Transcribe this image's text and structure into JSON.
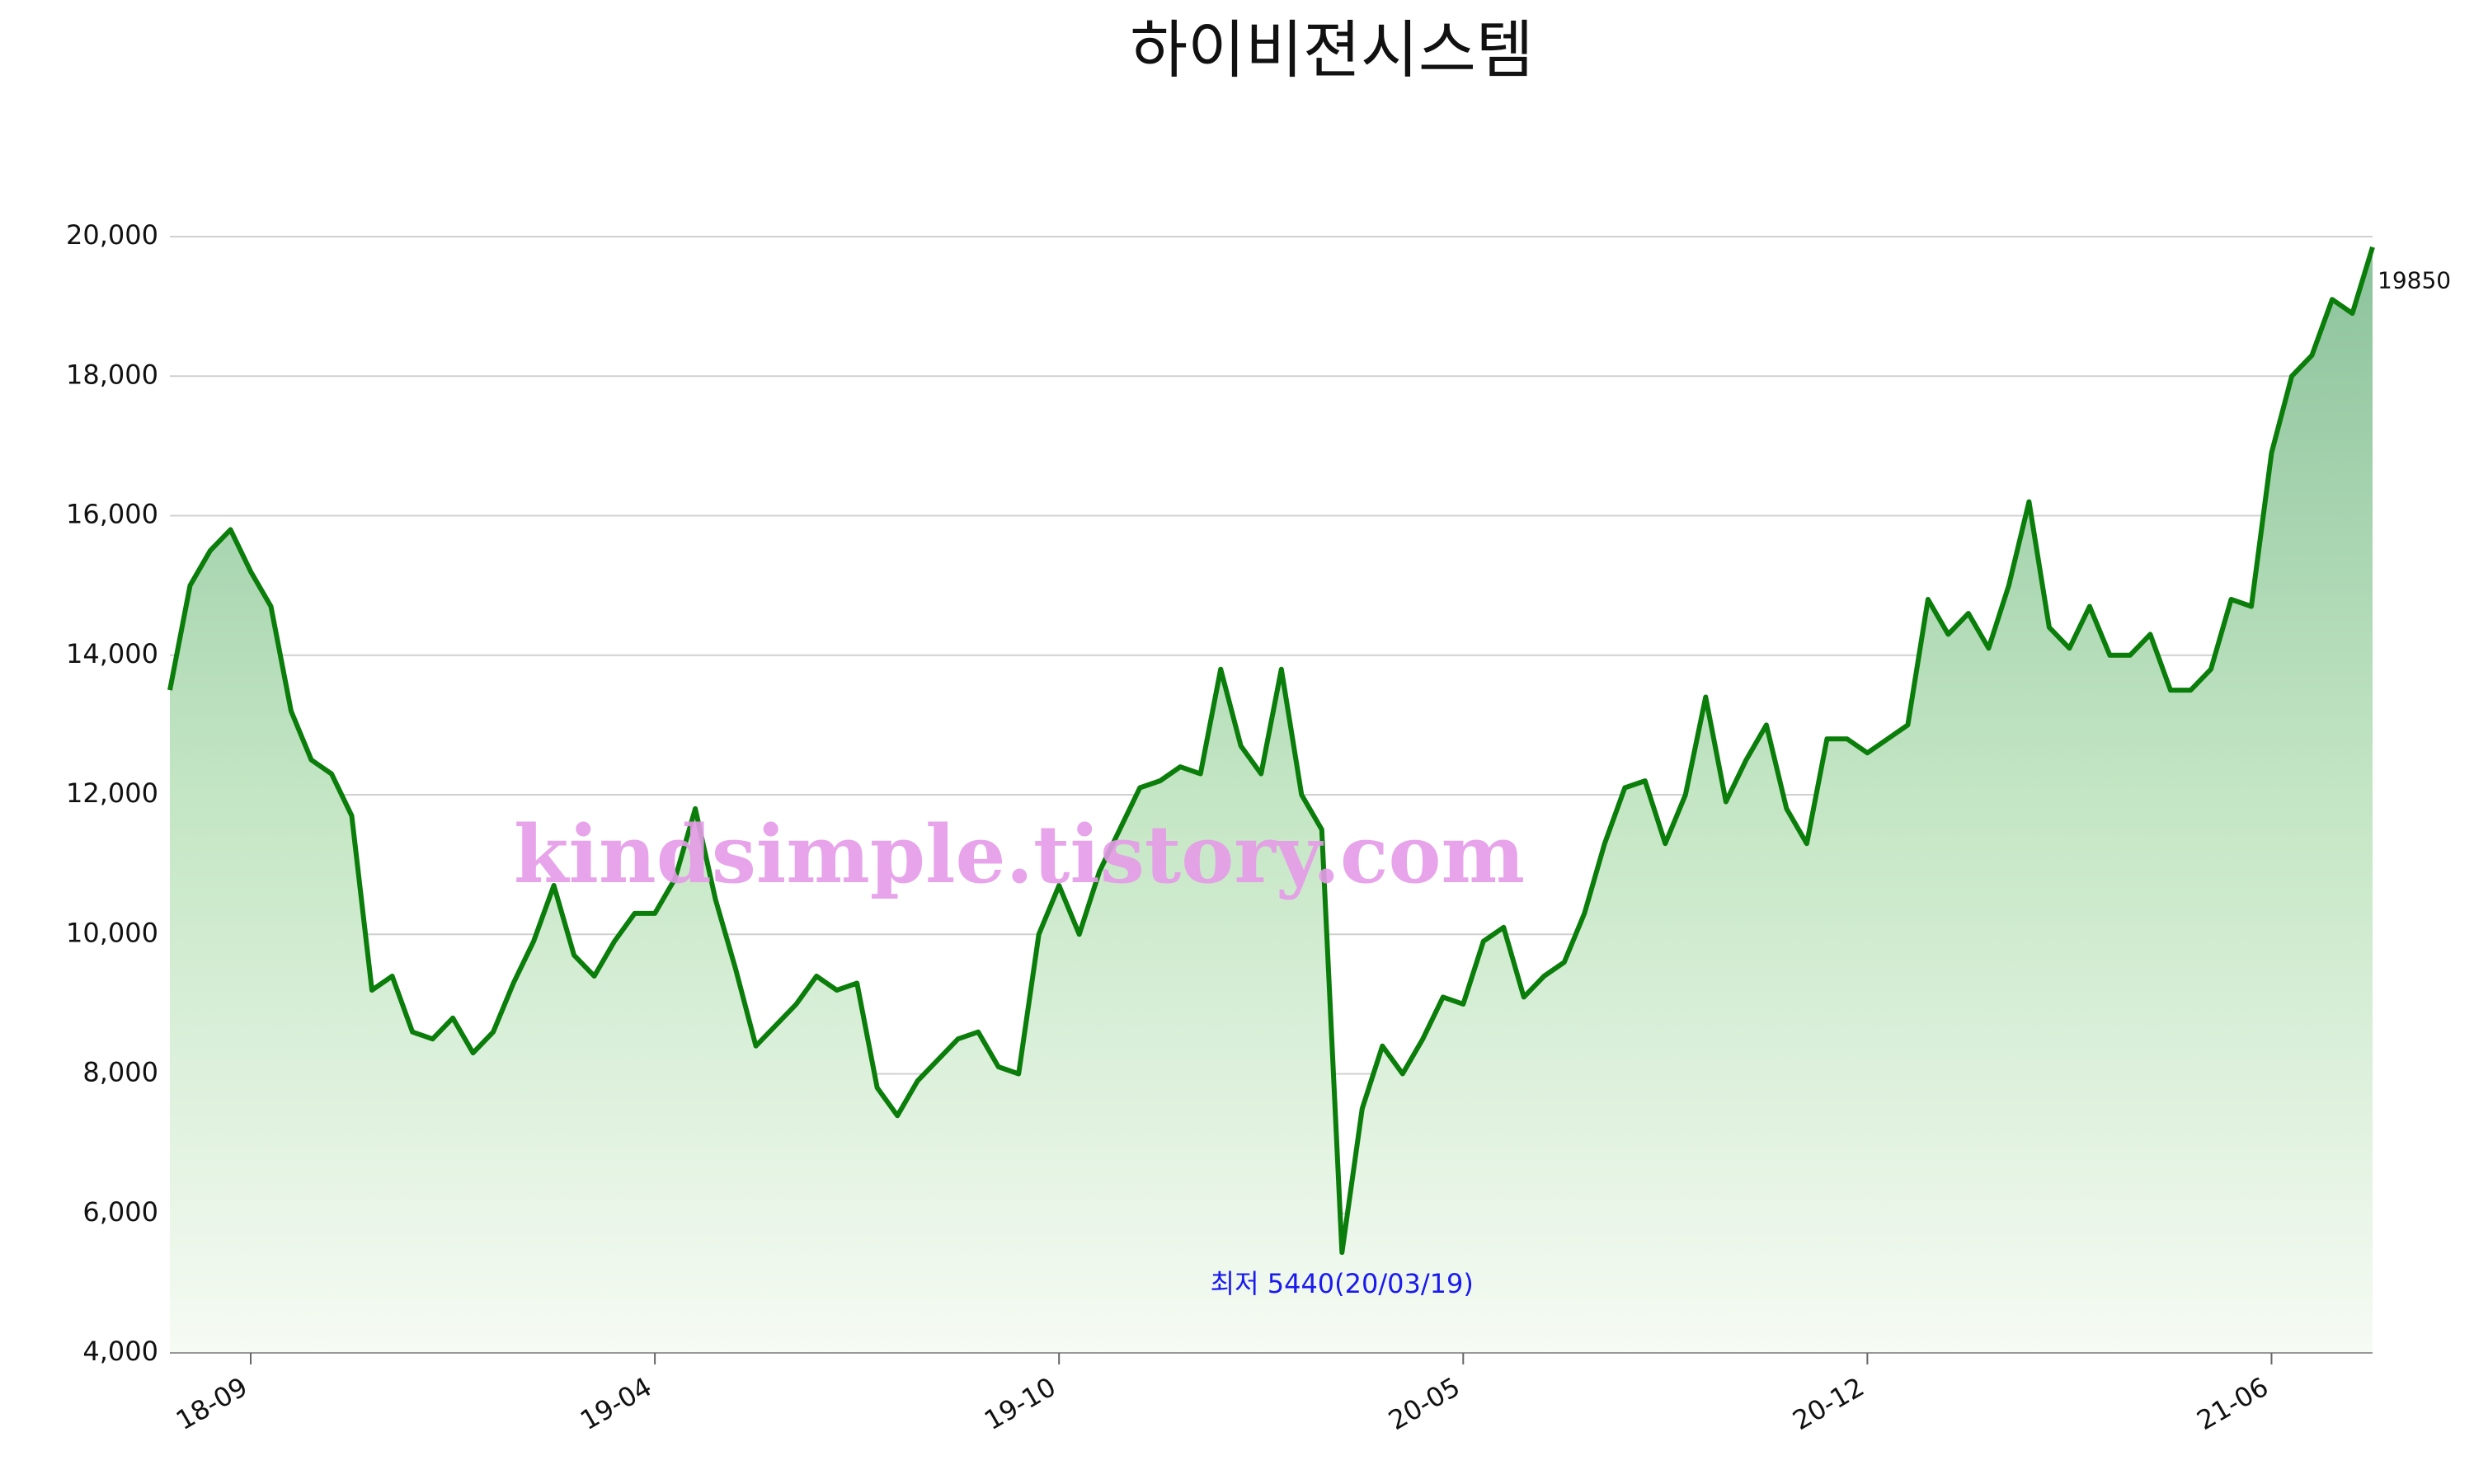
{
  "chart_data": {
    "type": "line",
    "title": "하이비젼시스템",
    "categories": [
      null,
      null,
      null,
      null,
      "18-09",
      null,
      null,
      null,
      null,
      null,
      null,
      null,
      null,
      null,
      null,
      null,
      null,
      null,
      null,
      null,
      null,
      null,
      null,
      null,
      "19-04",
      null,
      null,
      null,
      null,
      null,
      null,
      null,
      null,
      null,
      null,
      null,
      null,
      null,
      null,
      null,
      null,
      null,
      null,
      null,
      "19-10",
      null,
      null,
      null,
      null,
      null,
      null,
      null,
      null,
      null,
      null,
      null,
      null,
      null,
      null,
      null,
      null,
      null,
      null,
      null,
      "20-05",
      null,
      null,
      null,
      null,
      null,
      null,
      null,
      null,
      null,
      null,
      null,
      null,
      null,
      null,
      null,
      null,
      null,
      null,
      null,
      "20-12",
      null,
      null,
      null,
      null,
      null,
      null,
      null,
      null,
      null,
      null,
      null,
      null,
      null,
      null,
      null,
      null,
      null,
      null,
      null,
      "21-06",
      null,
      null,
      null,
      null,
      null
    ],
    "values": [
      13500,
      15000,
      15500,
      15800,
      15200,
      14700,
      13200,
      12500,
      12300,
      11700,
      9200,
      9400,
      8600,
      8500,
      8800,
      8300,
      8600,
      9300,
      9900,
      10700,
      9700,
      9400,
      9900,
      10300,
      10300,
      10800,
      11800,
      10500,
      9500,
      8400,
      8700,
      9000,
      9400,
      9200,
      9300,
      7800,
      7400,
      7900,
      8200,
      8500,
      8600,
      8100,
      8000,
      10000,
      10700,
      10000,
      10900,
      11500,
      12100,
      12200,
      12400,
      12300,
      13800,
      12700,
      12300,
      13800,
      12000,
      11500,
      5440,
      7500,
      8400,
      8000,
      8500,
      9100,
      9000,
      9900,
      10100,
      9100,
      9400,
      9600,
      10300,
      11300,
      12100,
      12200,
      11300,
      12000,
      13400,
      11900,
      12500,
      13000,
      11800,
      11300,
      12800,
      12800,
      12600,
      12800,
      13000,
      14800,
      14300,
      14600,
      14100,
      15000,
      16200,
      14400,
      14100,
      14700,
      14000,
      14000,
      14300,
      13500,
      13500,
      13800,
      14800,
      14700,
      16900,
      18000,
      18300,
      19100,
      18900,
      19850
    ],
    "color": "#0a7d0a",
    "ylim": [
      4000,
      20000
    ],
    "yticks": [
      {
        "value": 4000,
        "label": "4,000"
      },
      {
        "value": 6000,
        "label": "6,000"
      },
      {
        "value": 8000,
        "label": "8,000"
      },
      {
        "value": 10000,
        "label": "10,000"
      },
      {
        "value": 12000,
        "label": "12,000"
      },
      {
        "value": 14000,
        "label": "14,000"
      },
      {
        "value": 16000,
        "label": "16,000"
      },
      {
        "value": 18000,
        "label": "18,000"
      },
      {
        "value": 20000,
        "label": "20,000"
      }
    ],
    "grid": true,
    "annotation": "최저 5440(20/03/19)",
    "watermark": "kindsimple.tistory.com"
  }
}
